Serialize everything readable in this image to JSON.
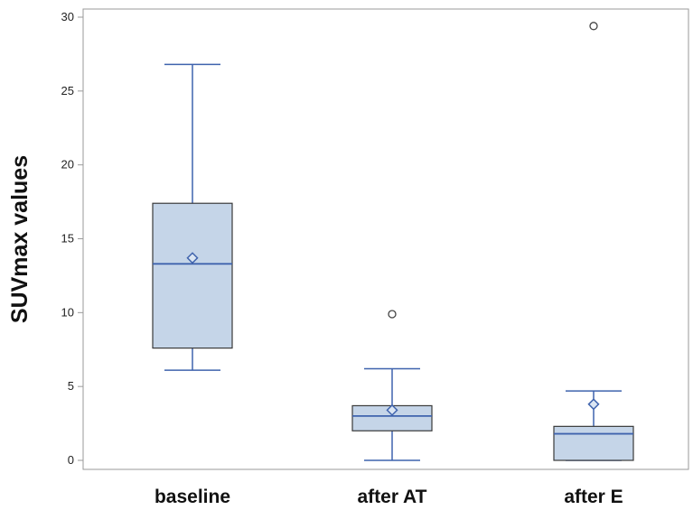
{
  "chart_data": {
    "type": "box",
    "ylabel": "SUVmax values",
    "xlabel": "",
    "ylim": [
      0,
      30.5
    ],
    "yticks": [
      0,
      5,
      10,
      15,
      20,
      25,
      30
    ],
    "categories": [
      "baseline",
      "after AT",
      "after E"
    ],
    "boxes": [
      {
        "category": "baseline",
        "min": 6.1,
        "q1": 7.6,
        "median": 13.3,
        "q3": 17.4,
        "max": 26.8,
        "mean": 13.7,
        "outliers": []
      },
      {
        "category": "after AT",
        "min": 0.0,
        "q1": 2.0,
        "median": 3.0,
        "q3": 3.7,
        "max": 6.2,
        "mean": 3.4,
        "outliers": [
          9.9
        ]
      },
      {
        "category": "after E",
        "min": 0.0,
        "q1": 0.0,
        "median": 1.8,
        "q3": 2.3,
        "max": 4.7,
        "mean": 3.8,
        "outliers": [
          29.4
        ]
      }
    ],
    "grid": false,
    "legend": "none",
    "colors": {
      "box_fill": "#c5d5e8",
      "box_edge": "#3a3a3a",
      "whisker": "#3f63ad",
      "median": "#3f63ad",
      "mean_marker": "#3f63ad",
      "outlier": "#444444",
      "axis": "#9a9a9a"
    }
  }
}
